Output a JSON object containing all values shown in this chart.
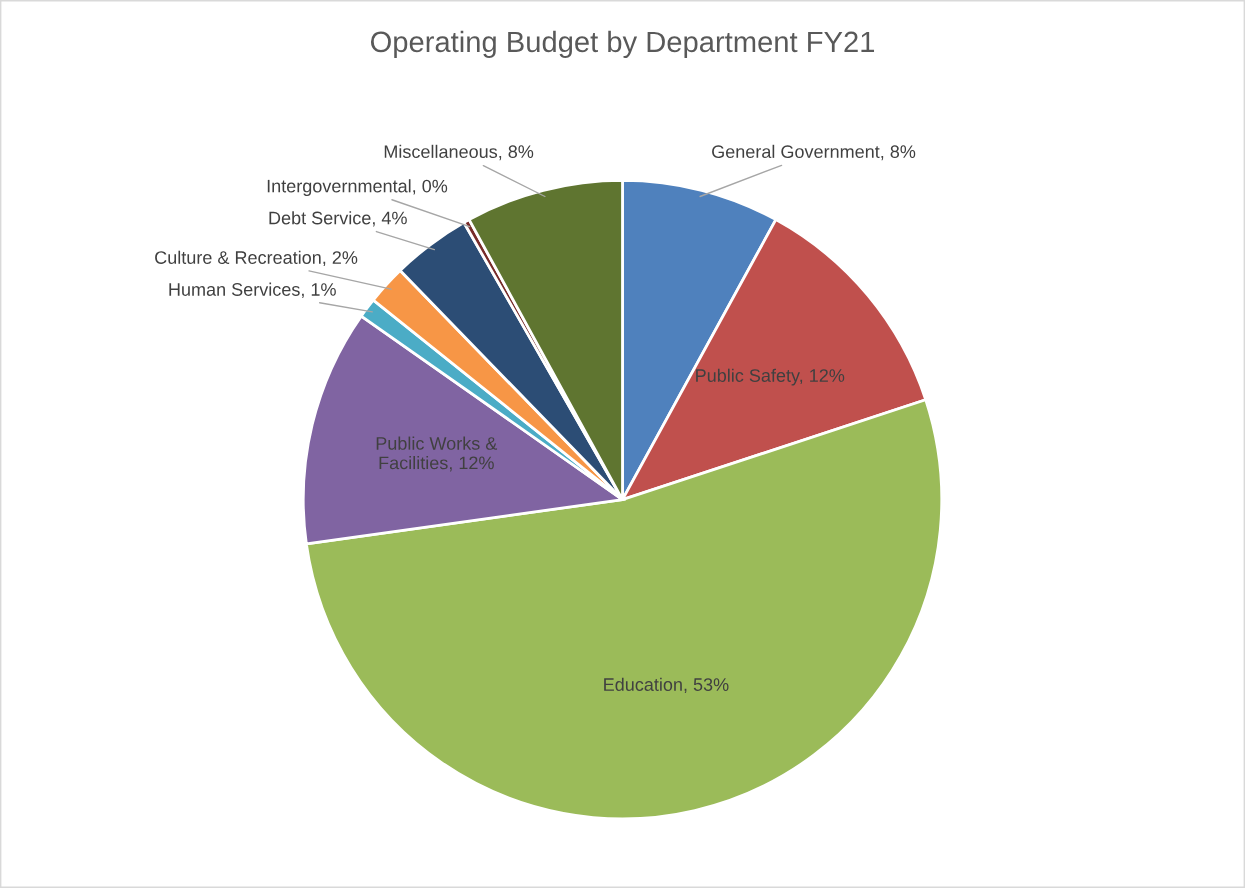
{
  "chart_data": {
    "type": "pie",
    "title": "Operating Budget by Department FY21",
    "categories": [
      "General Government",
      "Public Safety",
      "Education",
      "Public Works & Facilities",
      "Human Services",
      "Culture & Recreation",
      "Debt Service",
      "Intergovernmental",
      "Miscellaneous"
    ],
    "values": [
      8,
      12,
      53,
      12,
      1,
      2,
      4,
      0.3,
      8
    ],
    "colors": [
      "#4f81bd",
      "#c0504d",
      "#9bbb59",
      "#8064a2",
      "#4bacc6",
      "#f79646",
      "#2c4d75",
      "#772c2a",
      "#5f7530"
    ],
    "value_labels": [
      "8%",
      "12%",
      "53%",
      "12%",
      "1%",
      "2%",
      "4%",
      "0%",
      "8%"
    ],
    "legend": false
  }
}
